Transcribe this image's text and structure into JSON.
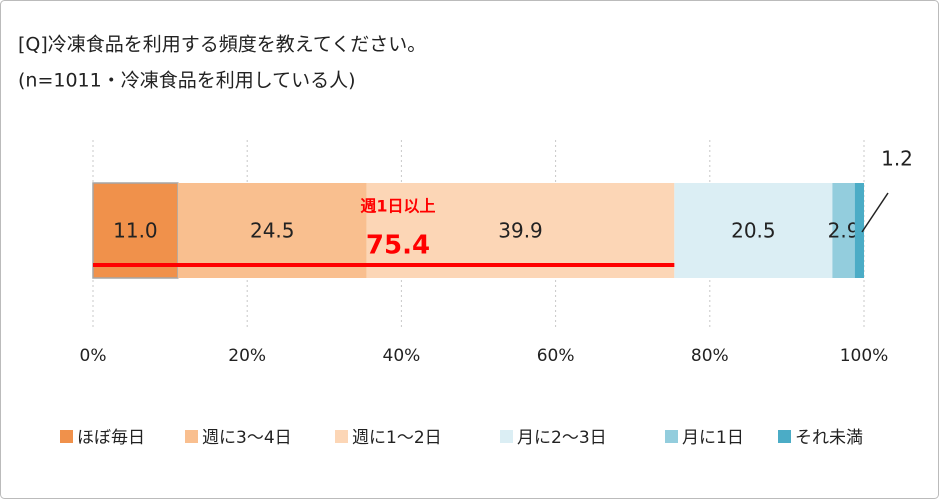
{
  "chart_data": {
    "type": "stacked-bar",
    "orientation": "horizontal",
    "title": "[Q]冷凍食品を利用する頻度を教えてください。",
    "subtitle": "(n=1011・冷凍食品を利用している人)",
    "categories": [
      null
    ],
    "series": [
      {
        "name": "ほぼ毎日",
        "color": "#f0914b",
        "values": [
          11
        ],
        "value_labels": [
          "11.0"
        ]
      },
      {
        "name": "週に3～4日",
        "color": "#f9bf8f",
        "values": [
          24.5
        ]
      },
      {
        "name": "週に1～2日",
        "color": "#fcd6b6",
        "values": [
          39.9
        ]
      },
      {
        "name": "月に2～3日",
        "color": "#dbeef4",
        "values": [
          20.5
        ]
      },
      {
        "name": "月に1日",
        "color": "#93cddd",
        "values": [
          2.9
        ]
      },
      {
        "name": "それ未満",
        "color": "#4bacc6",
        "values": [
          1.2
        ]
      }
    ],
    "annotation": {
      "text": "週1日以上",
      "value": 75.4,
      "color": "#ff0000"
    },
    "xlim": [
      0,
      100
    ],
    "xticks": [
      {
        "value": 0,
        "label": "0%"
      },
      {
        "value": 20,
        "label": "20%"
      },
      {
        "value": 40,
        "label": "40%"
      },
      {
        "value": 60,
        "label": "60%"
      },
      {
        "value": 80,
        "label": "80%"
      },
      {
        "value": 100,
        "label": "100%"
      }
    ],
    "grid": true,
    "legend": "bottom"
  }
}
